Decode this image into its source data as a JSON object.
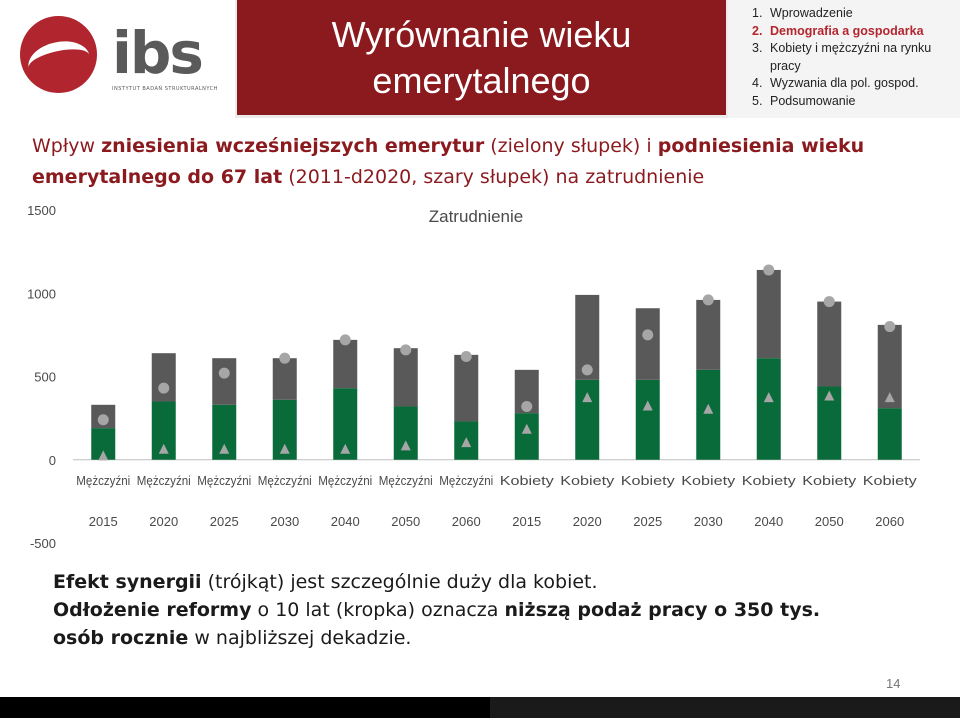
{
  "header": {
    "logo_text": "ibs",
    "logo_subtext": "INSTYTUT BADAŃ STRUKTURALNYCH",
    "title_line1": "Wyrównanie wieku",
    "title_line2": "emerytalnego",
    "menu": [
      {
        "num": "1.",
        "label": "Wprowadzenie"
      },
      {
        "num": "2.",
        "label": "Demografia a gospodarka"
      },
      {
        "num": "3.",
        "label": "Kobiety i mężczyźni na rynku"
      },
      {
        "num": "",
        "label": "pracy"
      },
      {
        "num": "4.",
        "label": "Wyzwania dla pol. gospod."
      },
      {
        "num": "5.",
        "label": "Podsumowanie"
      }
    ]
  },
  "subtitle": {
    "p1": "Wpływ ",
    "b1": "zniesienia wcześniejszych emerytur",
    "p2": " (zielony słupek) i ",
    "b2": "podniesienia wieku emerytalnego do 67 lat",
    "p3": " (2011-d2020, szary słupek) na zatrudnienie"
  },
  "chart_data": {
    "type": "bar",
    "title": "Zatrudnienie",
    "categories": [
      "Mężczyźni",
      "Mężczyźni",
      "Mężczyźni",
      "Mężczyźni",
      "Mężczyźni",
      "Mężczyźni",
      "Mężczyźni",
      "Kobiety",
      "Kobiety",
      "Kobiety",
      "Kobiety",
      "Kobiety",
      "Kobiety",
      "Kobiety"
    ],
    "years": [
      "2015",
      "2020",
      "2025",
      "2030",
      "2040",
      "2050",
      "2060",
      "2015",
      "2020",
      "2025",
      "2030",
      "2040",
      "2050",
      "2060"
    ],
    "series": [
      {
        "type": "bar",
        "values": [
          190,
          350,
          330,
          360,
          430,
          320,
          230,
          280,
          480,
          480,
          540,
          610,
          440,
          310
        ]
      },
      {
        "type": "bar",
        "values": [
          140,
          290,
          280,
          250,
          290,
          350,
          400,
          260,
          510,
          430,
          420,
          530,
          510,
          500
        ]
      },
      {
        "type": "scatter",
        "marker": "circle",
        "values": [
          240,
          430,
          520,
          610,
          720,
          660,
          620,
          320,
          540,
          750,
          960,
          1140,
          950,
          800
        ]
      },
      {
        "type": "scatter",
        "marker": "triangle",
        "values": [
          20,
          60,
          60,
          60,
          60,
          80,
          100,
          180,
          370,
          320,
          300,
          370,
          380,
          370
        ]
      }
    ],
    "yticks": [
      -500,
      0,
      500,
      1000,
      1500
    ],
    "ylim": [
      -500,
      1500
    ],
    "colors": {
      "green": "#0a6b3a",
      "gray": "#595959",
      "marker": "#a6a6a6",
      "axis": "#4a4a4a"
    }
  },
  "caption": {
    "l1_b": "Efekt synergii",
    "l1_t": " (trójkąt) jest szczególnie duży dla kobiet.",
    "l2_b1": "Odłożenie reformy",
    "l2_t1": " o 10 lat (kropka) oznacza ",
    "l2_b2": "niższą podaż pracy o 350 tys.",
    "l3_b": "osób rocznie",
    "l3_t": " w najbliższej dekadzie."
  },
  "page_number": "14"
}
